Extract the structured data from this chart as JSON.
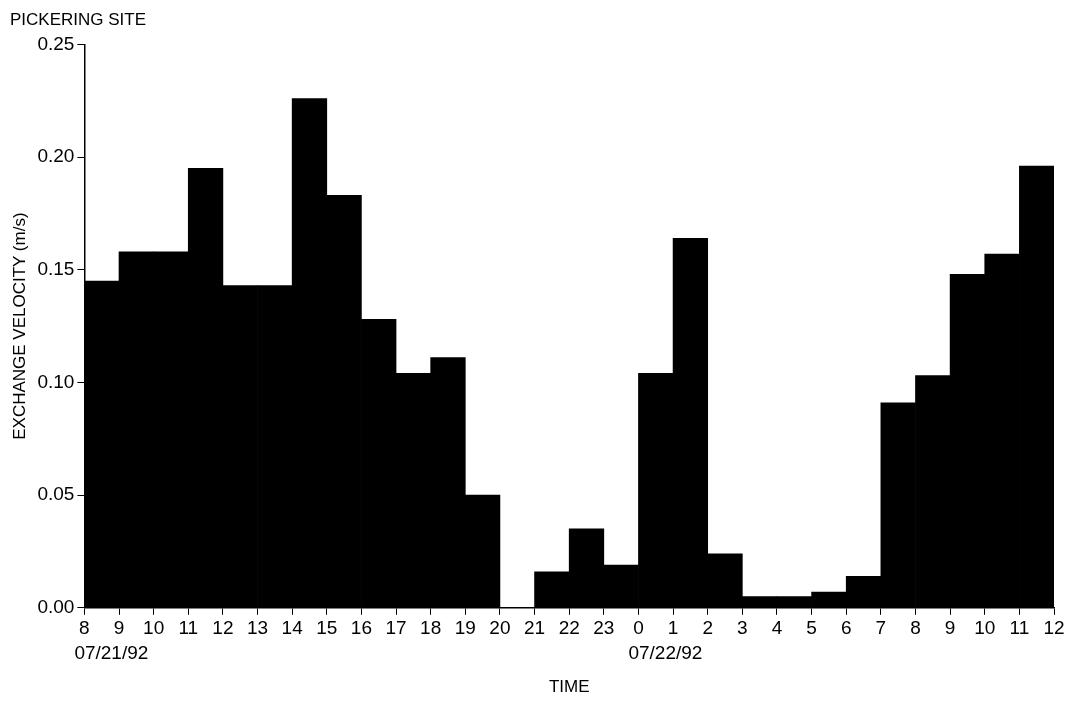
{
  "chart_data": {
    "type": "histogram",
    "title": "PICKERING SITE",
    "xlabel": "TIME",
    "ylabel": "EXCHANGE VELOCITY (m/s)",
    "bins": [
      "--07-21T08:00",
      "--07-21T09:00",
      "--07-21T10:00",
      "--07-21T11:00",
      "--07-21T12:00",
      "--07-21T13:00",
      "--07-21T14:00",
      "--07-21T15:00",
      "--07-21T16:00",
      "--07-21T17:00",
      "--07-21T18:00",
      "--07-21T19:00",
      "--07-21T20:00",
      "--07-21T21:00",
      "--07-21T22:00",
      "--07-21T23:00",
      "--07-22T00:00",
      "--07-22T01:00",
      "--07-22T02:00",
      "--07-22T03:00",
      "--07-22T04:00",
      "--07-22T05:00",
      "--07-22T06:00",
      "--07-22T07:00",
      "--07-22T08:00",
      "--07-22T09:00",
      "--07-22T10:00",
      "--07-22T11:00",
      "--07-22T12:00"
    ],
    "values": [
      0.145,
      0.158,
      0.158,
      0.195,
      0.143,
      0.143,
      0.226,
      0.183,
      0.128,
      0.104,
      0.111,
      0.05,
      0,
      0.016,
      0.035,
      0.019,
      0.104,
      0.164,
      0.024,
      0.005,
      0.005,
      0.007,
      0.014,
      0.091,
      0.103,
      0.148,
      0.157,
      0.196
    ],
    "color": "#000000",
    "xlim": [
      "--07-21T08:00",
      "--07-22T12:00"
    ],
    "xticks": [
      {
        "value": "--07-21T08:00",
        "label": "8"
      },
      {
        "value": "--07-21T09:00",
        "label": "9"
      },
      {
        "value": "--07-21T10:00",
        "label": "10"
      },
      {
        "value": "--07-21T11:00",
        "label": "11"
      },
      {
        "value": "--07-21T12:00",
        "label": "12"
      },
      {
        "value": "--07-21T13:00",
        "label": "13"
      },
      {
        "value": "--07-21T14:00",
        "label": "14"
      },
      {
        "value": "--07-21T15:00",
        "label": "15"
      },
      {
        "value": "--07-21T16:00",
        "label": "16"
      },
      {
        "value": "--07-21T17:00",
        "label": "17"
      },
      {
        "value": "--07-21T18:00",
        "label": "18"
      },
      {
        "value": "--07-21T19:00",
        "label": "19"
      },
      {
        "value": "--07-21T20:00",
        "label": "20"
      },
      {
        "value": "--07-21T21:00",
        "label": "21"
      },
      {
        "value": "--07-21T22:00",
        "label": "22"
      },
      {
        "value": "--07-21T23:00",
        "label": "23"
      },
      {
        "value": "--07-22T00:00",
        "label": "0"
      },
      {
        "value": "--07-22T01:00",
        "label": "1"
      },
      {
        "value": "--07-22T02:00",
        "label": "2"
      },
      {
        "value": "--07-22T03:00",
        "label": "3"
      },
      {
        "value": "--07-22T04:00",
        "label": "4"
      },
      {
        "value": "--07-22T05:00",
        "label": "5"
      },
      {
        "value": "--07-22T06:00",
        "label": "6"
      },
      {
        "value": "--07-22T07:00",
        "label": "7"
      },
      {
        "value": "--07-22T08:00",
        "label": "8"
      },
      {
        "value": "--07-22T09:00",
        "label": "9"
      },
      {
        "value": "--07-22T10:00",
        "label": "10"
      },
      {
        "value": "--07-22T11:00",
        "label": "11"
      },
      {
        "value": "--07-22T12:00",
        "label": "12"
      }
    ],
    "ylim": [
      0,
      0.25
    ],
    "yticks": [
      {
        "value": 0,
        "label": "0.00"
      },
      {
        "value": 0.05,
        "label": "0.05"
      },
      {
        "value": 0.1,
        "label": "0.10"
      },
      {
        "value": 0.15,
        "label": "0.15"
      },
      {
        "value": 0.2,
        "label": "0.20"
      },
      {
        "value": 0.25,
        "label": "0.25"
      }
    ],
    "grid": false,
    "annotations": [
      "07/21/92",
      "07/22/92"
    ]
  }
}
